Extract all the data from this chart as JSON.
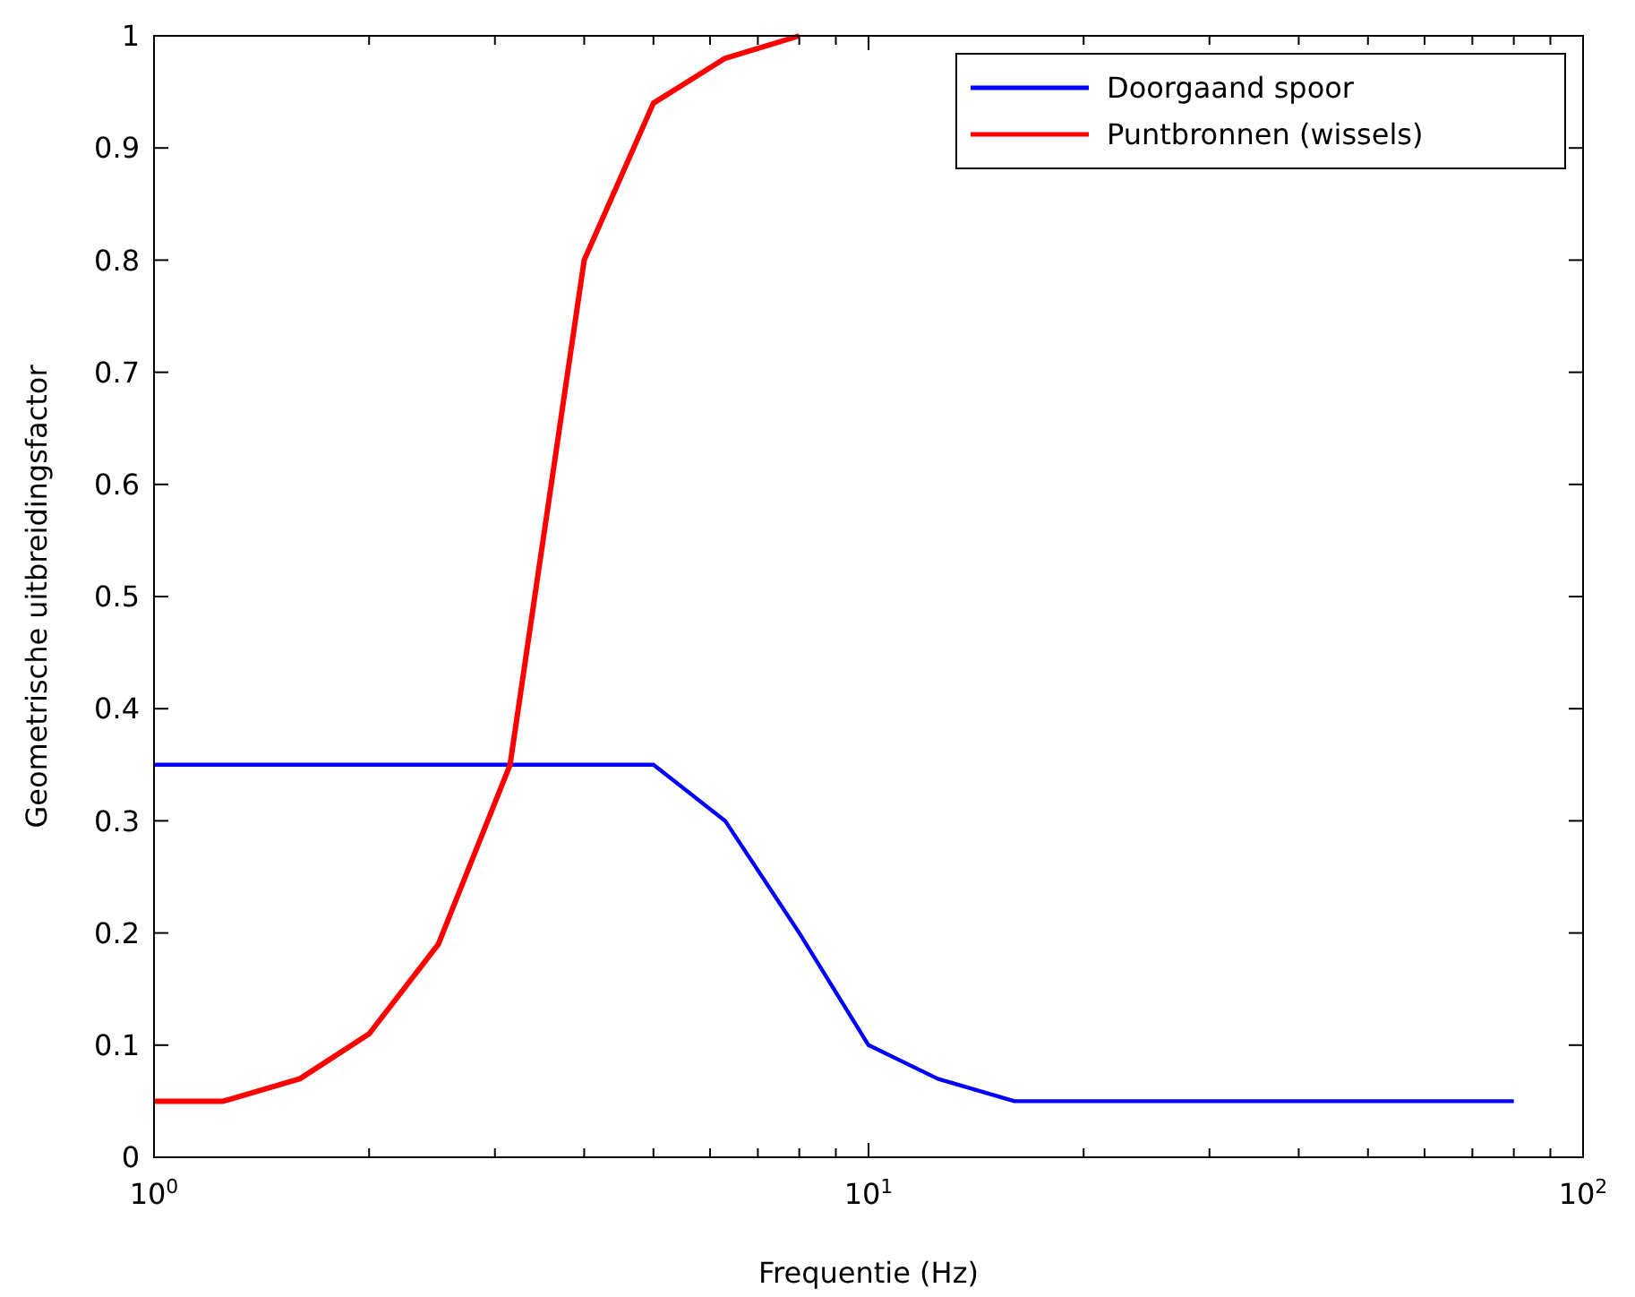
{
  "chart_data": {
    "type": "line",
    "xlabel": "Frequentie (Hz)",
    "ylabel": "Geometrische uitbreidingsfactor",
    "log": "x",
    "xlim": [
      1,
      100
    ],
    "ylim": [
      0,
      1
    ],
    "xticks": [
      {
        "value": 1,
        "label": "10$^{0}$"
      },
      {
        "value": 2,
        "label": null
      },
      {
        "value": 3,
        "label": null
      },
      {
        "value": 4,
        "label": null
      },
      {
        "value": 5,
        "label": null
      },
      {
        "value": 6,
        "label": null
      },
      {
        "value": 7,
        "label": null
      },
      {
        "value": 8,
        "label": null
      },
      {
        "value": 9,
        "label": null
      },
      {
        "value": 10,
        "label": "10$^{1}$"
      },
      {
        "value": 20,
        "label": null
      },
      {
        "value": 30,
        "label": null
      },
      {
        "value": 40,
        "label": null
      },
      {
        "value": 50,
        "label": null
      },
      {
        "value": 60,
        "label": null
      },
      {
        "value": 70,
        "label": null
      },
      {
        "value": 80,
        "label": null
      },
      {
        "value": 90,
        "label": null
      },
      {
        "value": 100,
        "label": "10$^{2}$"
      }
    ],
    "yticks": [
      0,
      0.1,
      0.2,
      0.3,
      0.4,
      0.5,
      0.6,
      0.7,
      0.8,
      0.9,
      1
    ],
    "grid": false,
    "legend": "top right",
    "marker": "none",
    "line_style": "solid",
    "series": [
      {
        "name": "Doorgaand spoor",
        "color": "#0000ff",
        "x": [
          1,
          5,
          6.3,
          8,
          10,
          12.5,
          16,
          80
        ],
        "values": [
          0.35,
          0.35,
          0.3,
          0.2,
          0.1,
          0.07,
          0.05,
          0.05
        ]
      },
      {
        "name": "Puntbronnen (wissels)",
        "color": "#ff0000",
        "x": [
          1,
          1.25,
          1.6,
          2,
          2.5,
          3.15,
          4,
          5,
          6.3,
          8
        ],
        "values": [
          0.05,
          0.05,
          0.07,
          0.11,
          0.19,
          0.35,
          0.8,
          0.94,
          0.98,
          1
        ]
      }
    ]
  }
}
